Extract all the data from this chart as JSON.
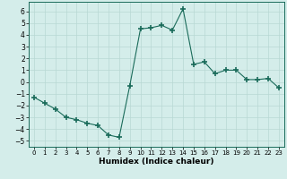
{
  "x": [
    0,
    1,
    2,
    3,
    4,
    5,
    6,
    7,
    8,
    9,
    10,
    11,
    12,
    13,
    14,
    15,
    16,
    17,
    18,
    19,
    20,
    21,
    22,
    23
  ],
  "y": [
    -1.3,
    -1.8,
    -2.3,
    -3.0,
    -3.2,
    -3.5,
    -3.7,
    -4.5,
    -4.7,
    -0.3,
    4.5,
    4.6,
    4.8,
    4.4,
    6.2,
    1.5,
    1.7,
    0.7,
    1.0,
    1.0,
    0.2,
    0.2,
    0.3,
    -0.5
  ],
  "xlabel": "Humidex (Indice chaleur)",
  "ylim": [
    -5.5,
    6.8
  ],
  "xlim": [
    -0.5,
    23.5
  ],
  "xticks": [
    0,
    1,
    2,
    3,
    4,
    5,
    6,
    7,
    8,
    9,
    10,
    11,
    12,
    13,
    14,
    15,
    16,
    17,
    18,
    19,
    20,
    21,
    22,
    23
  ],
  "yticks": [
    -5,
    -4,
    -3,
    -2,
    -1,
    0,
    1,
    2,
    3,
    4,
    5,
    6
  ],
  "line_color": "#1a6b5a",
  "marker": "+",
  "marker_size": 4,
  "bg_color": "#d4edea",
  "grid_color": "#b8d8d4",
  "xlabel_fontsize": 6.5,
  "xlabel_fontweight": "bold",
  "tick_fontsize_x": 5.0,
  "tick_fontsize_y": 5.5
}
